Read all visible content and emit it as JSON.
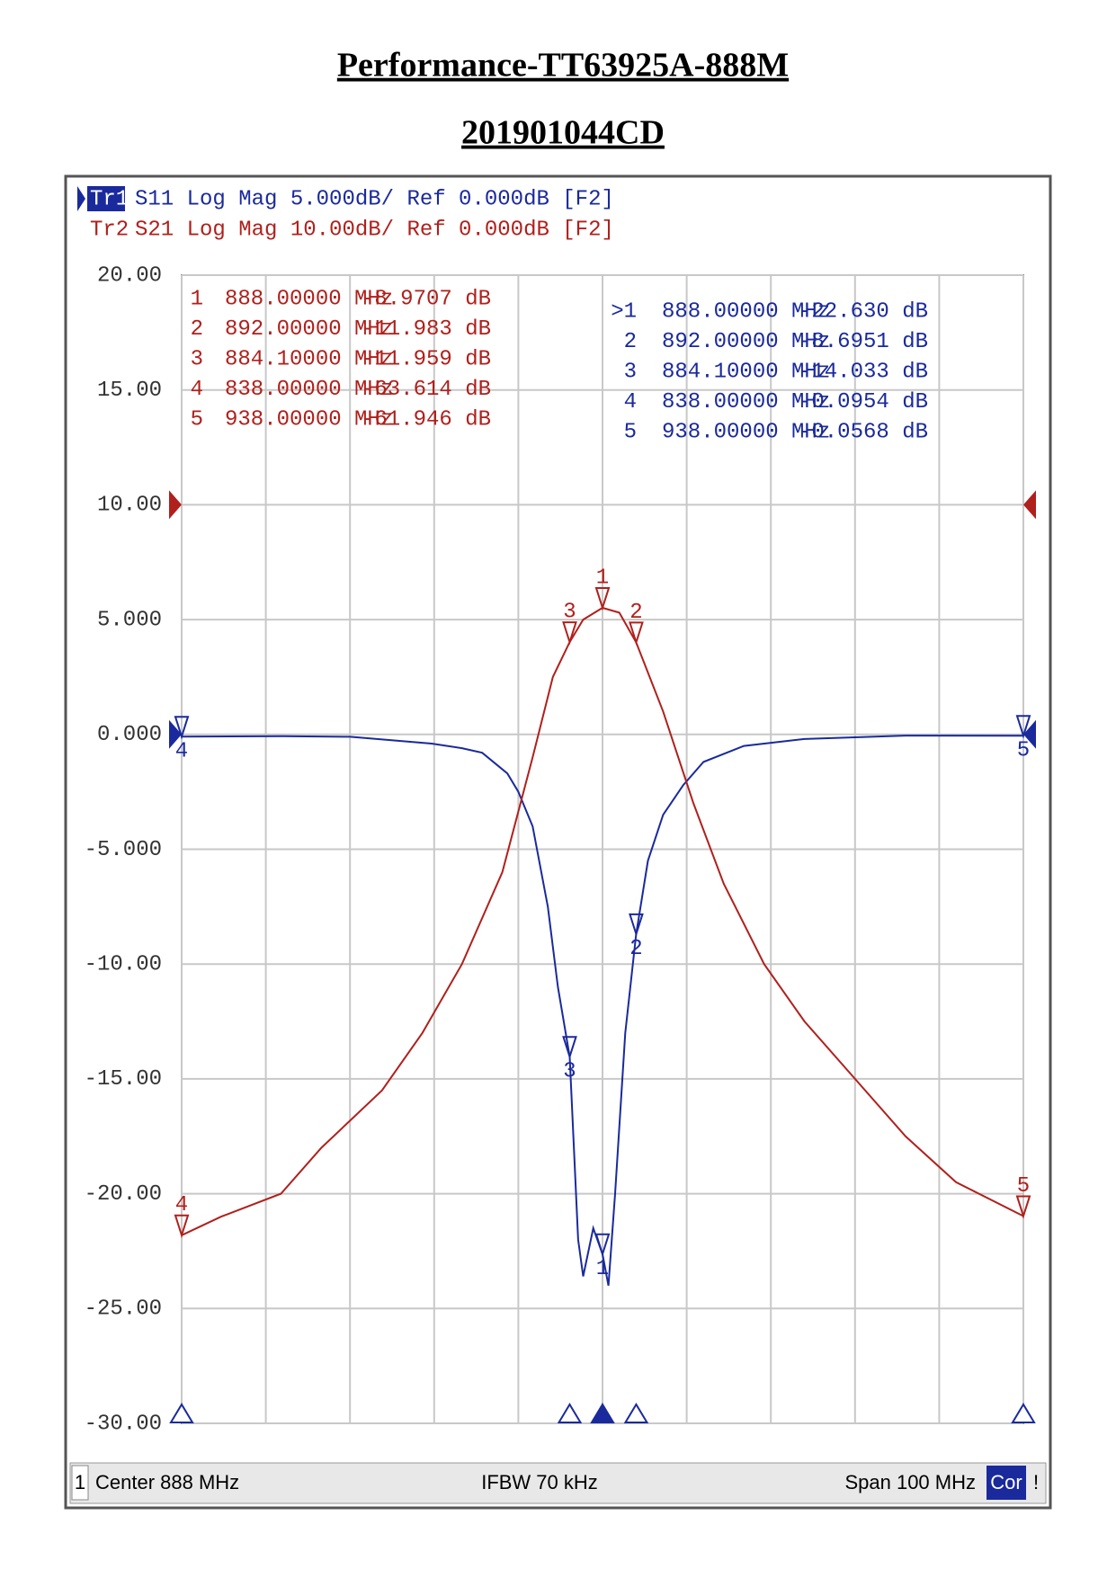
{
  "chart_data": {
    "type": "line",
    "title": "Performance-TT63925A-888M",
    "subtitle": "201901044CD",
    "xlim": [
      838,
      938
    ],
    "xticks": [
      838,
      848,
      858,
      868,
      878,
      888,
      898,
      908,
      918,
      928,
      938
    ],
    "ylim": [
      -30,
      20
    ],
    "yticks": [
      {
        "value": -30,
        "label": "-30.00"
      },
      {
        "value": -25,
        "label": "-25.00"
      },
      {
        "value": -20,
        "label": "-20.00"
      },
      {
        "value": -15,
        "label": "-15.00"
      },
      {
        "value": -10,
        "label": "-10.00"
      },
      {
        "value": -5,
        "label": "-5.000"
      },
      {
        "value": 0,
        "label": "0.000"
      },
      {
        "value": 5,
        "label": "5.000"
      },
      {
        "value": 10,
        "label": "10.00"
      },
      {
        "value": 15,
        "label": "15.00"
      },
      {
        "value": 20,
        "label": "20.00"
      }
    ],
    "y2lim": [
      -80,
      20
    ],
    "grid": true,
    "series": [
      {
        "name": "S11",
        "trace": "Tr1",
        "description": "S11 Log Mag 5.000dB/ Ref 0.000dB [F2]",
        "color": "#1a2a9c",
        "axis": "y",
        "reference": 0,
        "x": [
          838,
          850,
          858,
          867.7,
          871.3,
          873.7,
          876.7,
          878,
          879.7,
          881.5,
          882.7,
          884.1,
          885.1,
          885.7,
          886.9,
          888,
          888.7,
          889.5,
          890.7,
          892,
          893.4,
          895.2,
          897.6,
          900,
          904.8,
          912,
          924,
          938
        ],
        "values": [
          -0.0954,
          -0.08,
          -0.1,
          -0.4,
          -0.6,
          -0.8,
          -1.7,
          -2.5,
          -4,
          -7.5,
          -11,
          -14.033,
          -22,
          -23.6,
          -21.5,
          -22.63,
          -24,
          -20,
          -13,
          -8.6951,
          -5.5,
          -3.5,
          -2.2,
          -1.2,
          -0.5,
          -0.2,
          -0.05,
          -0.0568
        ],
        "markers": [
          {
            "name": "1",
            "table_name": ">1",
            "active": true,
            "x": 888,
            "value": -22.63,
            "x_label": "888.00000 MHz",
            "value_label": "-22.630 dB"
          },
          {
            "name": "2",
            "table_name": "2",
            "x": 892,
            "value": -8.6951,
            "x_label": "892.00000 MHz",
            "value_label": "-8.6951 dB"
          },
          {
            "name": "3",
            "table_name": "3",
            "x": 884.1,
            "value": -14.033,
            "x_label": "884.10000 MHz",
            "value_label": "-14.033 dB"
          },
          {
            "name": "4",
            "table_name": "4",
            "x": 838,
            "value": -0.0954,
            "x_label": "838.00000 MHz",
            "value_label": "-0.0954 dB"
          },
          {
            "name": "5",
            "table_name": "5",
            "x": 938,
            "value": -0.0568,
            "x_label": "938.00000 MHz",
            "value_label": "-0.0568 dB"
          }
        ]
      },
      {
        "name": "S21",
        "trace": "Tr2",
        "description": "S21 Log Mag 10.00dB/ Ref 0.000dB [F2]",
        "color": "#b0201c",
        "axis": "y2",
        "reference": 0,
        "x": [
          838,
          842.7,
          849.8,
          854.6,
          861.8,
          866.6,
          871.3,
          876.1,
          879.7,
          882.1,
          884.1,
          885.7,
          888,
          890,
          892,
          895.2,
          898.8,
          902.4,
          907.2,
          912,
          918,
          924,
          930,
          938
        ],
        "values": [
          -63.614,
          -62,
          -60,
          -56,
          -51,
          -46,
          -40,
          -32,
          -22,
          -15,
          -11.959,
          -10,
          -8.9707,
          -9.4,
          -11.983,
          -18,
          -26,
          -33,
          -40,
          -45,
          -50,
          -55,
          -59,
          -61.946
        ],
        "markers": [
          {
            "name": "1",
            "table_name": "1",
            "x": 888,
            "value": -8.9707,
            "x_label": "888.00000 MHz",
            "value_label": "-8.9707 dB"
          },
          {
            "name": "2",
            "table_name": "2",
            "x": 892,
            "value": -11.983,
            "x_label": "892.00000 MHz",
            "value_label": "-11.983 dB"
          },
          {
            "name": "3",
            "table_name": "3",
            "x": 884.1,
            "value": -11.959,
            "x_label": "884.10000 MHz",
            "value_label": "-11.959 dB"
          },
          {
            "name": "4",
            "table_name": "4",
            "x": 838,
            "value": -63.614,
            "x_label": "838.00000 MHz",
            "value_label": "-63.614 dB"
          },
          {
            "name": "5",
            "table_name": "5",
            "x": 938,
            "value": -61.946,
            "x_label": "938.00000 MHz",
            "value_label": "-61.946 dB"
          }
        ]
      }
    ],
    "footer": {
      "channel": "1",
      "center": "Center 888 MHz",
      "ifbw": "IFBW 70 kHz",
      "span": "Span 100 MHz",
      "correction": "Cor",
      "status": "!"
    }
  }
}
